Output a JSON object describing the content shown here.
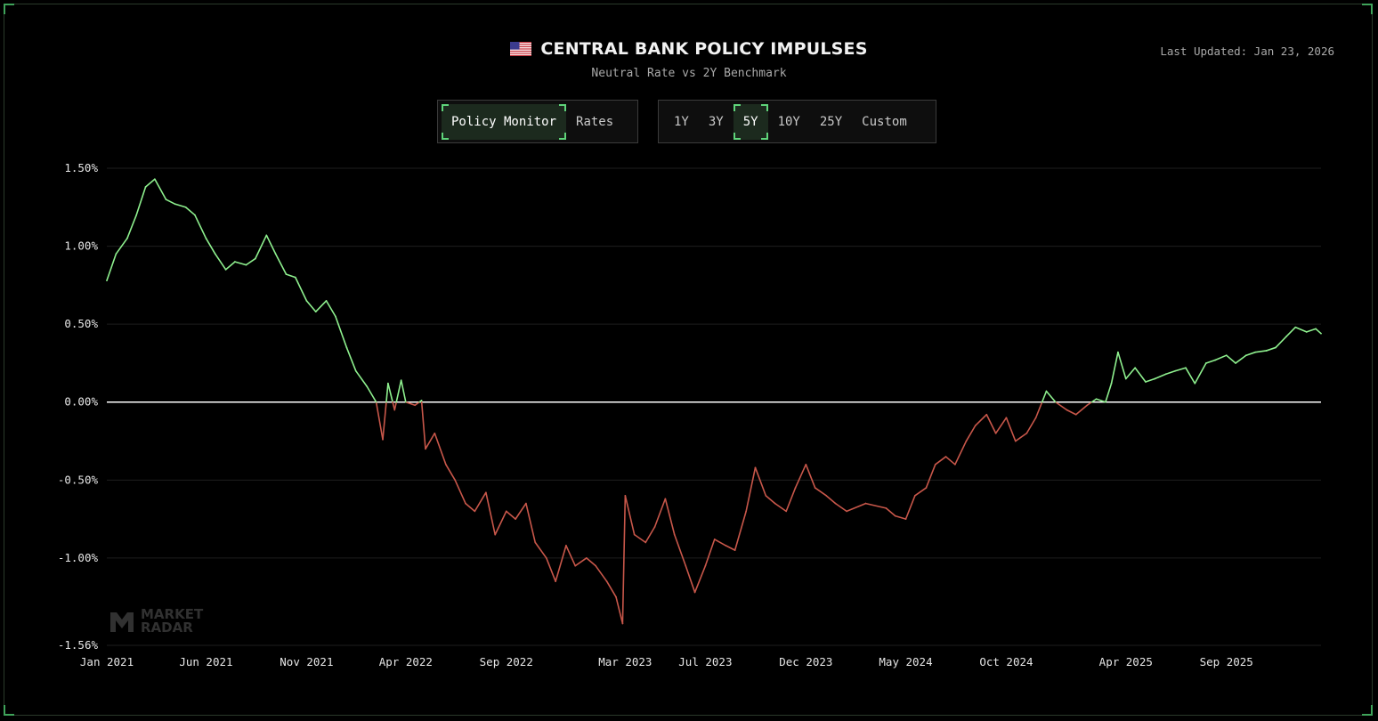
{
  "header": {
    "title": "CENTRAL BANK POLICY IMPULSES",
    "subtitle": "Neutral Rate vs 2Y Benchmark",
    "last_updated": "Last Updated: Jan 23, 2026",
    "flag_icon": "us-flag-icon"
  },
  "view_toggle": {
    "items": [
      {
        "label": "Policy Monitor",
        "active": true
      },
      {
        "label": "Rates",
        "active": false
      }
    ]
  },
  "range_toggle": {
    "items": [
      {
        "label": "1Y",
        "active": false
      },
      {
        "label": "3Y",
        "active": false
      },
      {
        "label": "5Y",
        "active": true
      },
      {
        "label": "10Y",
        "active": false
      },
      {
        "label": "25Y",
        "active": false
      },
      {
        "label": "Custom",
        "active": false
      }
    ]
  },
  "watermark": {
    "line1": "MARKET",
    "line2": "RADAR"
  },
  "colors": {
    "positive": "#8ef08e",
    "negative": "#c8574a",
    "zero_line": "#ffffff",
    "grid": "#1e1e1e",
    "accent": "#5fd47a"
  },
  "chart_data": {
    "type": "line",
    "title": "CENTRAL BANK POLICY IMPULSES",
    "subtitle": "Neutral Rate vs 2Y Benchmark",
    "xlabel": "",
    "ylabel": "",
    "ylim": [
      -1.56,
      1.5
    ],
    "xlim": [
      "2021-01-01",
      "2026-01-23"
    ],
    "y_ticks": [
      1.5,
      1.0,
      0.5,
      0.0,
      -0.5,
      -1.0,
      -1.56
    ],
    "y_tick_labels": [
      "1.50%",
      "1.00%",
      "0.50%",
      "0.00%",
      "-0.50%",
      "-1.00%",
      "-1.56%"
    ],
    "x_ticks": [
      "2021-01-01",
      "2021-06-01",
      "2021-11-01",
      "2022-04-01",
      "2022-09-01",
      "2023-03-01",
      "2023-07-01",
      "2023-12-01",
      "2024-05-01",
      "2024-10-01",
      "2025-04-01",
      "2025-09-01"
    ],
    "x_tick_labels": [
      "Jan 2021",
      "Jun 2021",
      "Nov 2021",
      "Apr 2022",
      "Sep 2022",
      "Mar 2023",
      "Jul 2023",
      "Dec 2023",
      "May 2024",
      "Oct 2024",
      "Apr 2025",
      "Sep 2025"
    ],
    "grid": true,
    "zero_line": true,
    "series": [
      {
        "points": [
          [
            "2021-01-01",
            0.78
          ],
          [
            "2021-01-15",
            0.95
          ],
          [
            "2021-02-01",
            1.05
          ],
          [
            "2021-02-15",
            1.2
          ],
          [
            "2021-03-01",
            1.38
          ],
          [
            "2021-03-15",
            1.43
          ],
          [
            "2021-04-01",
            1.3
          ],
          [
            "2021-04-15",
            1.27
          ],
          [
            "2021-05-01",
            1.25
          ],
          [
            "2021-05-15",
            1.2
          ],
          [
            "2021-06-01",
            1.05
          ],
          [
            "2021-06-15",
            0.95
          ],
          [
            "2021-07-01",
            0.85
          ],
          [
            "2021-07-15",
            0.9
          ],
          [
            "2021-08-01",
            0.88
          ],
          [
            "2021-08-15",
            0.92
          ],
          [
            "2021-09-01",
            1.07
          ],
          [
            "2021-09-15",
            0.95
          ],
          [
            "2021-10-01",
            0.82
          ],
          [
            "2021-10-15",
            0.8
          ],
          [
            "2021-11-01",
            0.65
          ],
          [
            "2021-11-15",
            0.58
          ],
          [
            "2021-12-01",
            0.65
          ],
          [
            "2021-12-15",
            0.55
          ],
          [
            "2022-01-01",
            0.35
          ],
          [
            "2022-01-15",
            0.2
          ],
          [
            "2022-02-01",
            0.1
          ],
          [
            "2022-02-15",
            0.0
          ],
          [
            "2022-02-25",
            -0.24
          ],
          [
            "2022-03-05",
            0.12
          ],
          [
            "2022-03-15",
            -0.05
          ],
          [
            "2022-03-25",
            0.14
          ],
          [
            "2022-04-01",
            0.0
          ],
          [
            "2022-04-15",
            -0.02
          ],
          [
            "2022-04-25",
            0.01
          ],
          [
            "2022-05-01",
            -0.3
          ],
          [
            "2022-05-15",
            -0.2
          ],
          [
            "2022-06-01",
            -0.4
          ],
          [
            "2022-06-15",
            -0.5
          ],
          [
            "2022-07-01",
            -0.65
          ],
          [
            "2022-07-15",
            -0.7
          ],
          [
            "2022-08-01",
            -0.58
          ],
          [
            "2022-08-15",
            -0.85
          ],
          [
            "2022-09-01",
            -0.7
          ],
          [
            "2022-09-15",
            -0.75
          ],
          [
            "2022-10-01",
            -0.65
          ],
          [
            "2022-10-15",
            -0.9
          ],
          [
            "2022-11-01",
            -1.0
          ],
          [
            "2022-11-15",
            -1.15
          ],
          [
            "2022-12-01",
            -0.92
          ],
          [
            "2022-12-15",
            -1.05
          ],
          [
            "2023-01-01",
            -1.0
          ],
          [
            "2023-01-15",
            -1.05
          ],
          [
            "2023-02-01",
            -1.15
          ],
          [
            "2023-02-15",
            -1.25
          ],
          [
            "2023-02-25",
            -1.42
          ],
          [
            "2023-03-01",
            -0.6
          ],
          [
            "2023-03-15",
            -0.85
          ],
          [
            "2023-04-01",
            -0.9
          ],
          [
            "2023-04-15",
            -0.8
          ],
          [
            "2023-05-01",
            -0.62
          ],
          [
            "2023-05-15",
            -0.85
          ],
          [
            "2023-06-01",
            -1.05
          ],
          [
            "2023-06-15",
            -1.22
          ],
          [
            "2023-07-01",
            -1.05
          ],
          [
            "2023-07-15",
            -0.88
          ],
          [
            "2023-08-01",
            -0.92
          ],
          [
            "2023-08-15",
            -0.95
          ],
          [
            "2023-09-01",
            -0.7
          ],
          [
            "2023-09-15",
            -0.42
          ],
          [
            "2023-10-01",
            -0.6
          ],
          [
            "2023-10-15",
            -0.65
          ],
          [
            "2023-11-01",
            -0.7
          ],
          [
            "2023-11-15",
            -0.55
          ],
          [
            "2023-12-01",
            -0.4
          ],
          [
            "2023-12-15",
            -0.55
          ],
          [
            "2024-01-01",
            -0.6
          ],
          [
            "2024-01-15",
            -0.65
          ],
          [
            "2024-02-01",
            -0.7
          ],
          [
            "2024-03-01",
            -0.65
          ],
          [
            "2024-04-01",
            -0.68
          ],
          [
            "2024-04-15",
            -0.73
          ],
          [
            "2024-05-01",
            -0.75
          ],
          [
            "2024-05-15",
            -0.6
          ],
          [
            "2024-06-01",
            -0.55
          ],
          [
            "2024-06-15",
            -0.4
          ],
          [
            "2024-07-01",
            -0.35
          ],
          [
            "2024-07-15",
            -0.4
          ],
          [
            "2024-08-01",
            -0.25
          ],
          [
            "2024-08-15",
            -0.15
          ],
          [
            "2024-09-01",
            -0.08
          ],
          [
            "2024-09-15",
            -0.2
          ],
          [
            "2024-10-01",
            -0.1
          ],
          [
            "2024-10-15",
            -0.25
          ],
          [
            "2024-11-01",
            -0.2
          ],
          [
            "2024-11-15",
            -0.1
          ],
          [
            "2024-12-01",
            0.07
          ],
          [
            "2024-12-15",
            0.0
          ],
          [
            "2025-01-01",
            -0.05
          ],
          [
            "2025-01-15",
            -0.08
          ],
          [
            "2025-02-01",
            -0.02
          ],
          [
            "2025-02-15",
            0.02
          ],
          [
            "2025-03-01",
            0.0
          ],
          [
            "2025-03-10",
            0.12
          ],
          [
            "2025-03-20",
            0.32
          ],
          [
            "2025-04-01",
            0.15
          ],
          [
            "2025-04-15",
            0.22
          ],
          [
            "2025-05-01",
            0.13
          ],
          [
            "2025-05-15",
            0.15
          ],
          [
            "2025-06-01",
            0.18
          ],
          [
            "2025-06-15",
            0.2
          ],
          [
            "2025-07-01",
            0.22
          ],
          [
            "2025-07-15",
            0.12
          ],
          [
            "2025-08-01",
            0.25
          ],
          [
            "2025-08-15",
            0.27
          ],
          [
            "2025-09-01",
            0.3
          ],
          [
            "2025-09-15",
            0.25
          ],
          [
            "2025-10-01",
            0.3
          ],
          [
            "2025-10-15",
            0.32
          ],
          [
            "2025-11-01",
            0.33
          ],
          [
            "2025-11-15",
            0.35
          ],
          [
            "2025-12-01",
            0.42
          ],
          [
            "2025-12-15",
            0.48
          ],
          [
            "2026-01-01",
            0.45
          ],
          [
            "2026-01-15",
            0.47
          ],
          [
            "2026-01-23",
            0.44
          ]
        ]
      }
    ]
  }
}
